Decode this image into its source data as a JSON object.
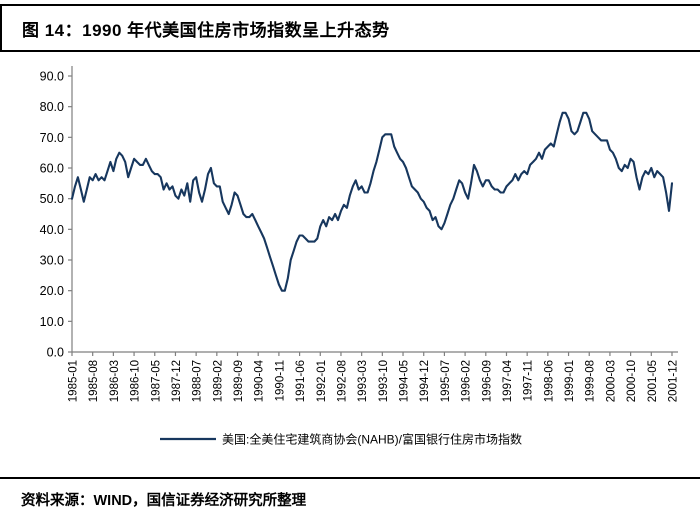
{
  "header": {
    "title": "图 14：1990 年代美国住房市场指数呈上升态势"
  },
  "footer": {
    "source": "资料来源：WIND，国信证券经济研究所整理"
  },
  "chart_data": {
    "type": "line",
    "title": "图 14：1990 年代美国住房市场指数呈上升态势",
    "xlabel": "",
    "ylabel": "",
    "ylim": [
      0,
      90
    ],
    "y_tick_step": 10,
    "y_tick_labels": [
      "90.0",
      "80.0",
      "70.0",
      "60.0",
      "50.0",
      "40.0",
      "30.0",
      "20.0",
      "10.0",
      "0.0"
    ],
    "x_tick_interval_months": 7,
    "x_tick_labels": [
      "1985-01",
      "1985-08",
      "1986-03",
      "1986-10",
      "1987-05",
      "1987-12",
      "1988-07",
      "1989-02",
      "1989-09",
      "1990-04",
      "1990-11",
      "1991-06",
      "1992-01",
      "1992-08",
      "1993-03",
      "1993-10",
      "1994-05",
      "1994-12",
      "1995-07",
      "1996-02",
      "1996-09",
      "1997-04",
      "1997-11",
      "1998-06",
      "1999-01",
      "1999-08",
      "2000-03",
      "2000-10",
      "2001-05",
      "2001-12"
    ],
    "grid": false,
    "legend_position": "bottom",
    "axis_color": "#7f7f7f",
    "series": [
      {
        "name": "美国:全美住宅建筑商协会(NAHB)/富国银行住房市场指数",
        "color": "#17375E",
        "start": "1985-01",
        "end": "2001-12",
        "frequency": "monthly",
        "values": [
          50,
          54,
          57,
          53,
          49,
          53,
          57,
          56,
          58,
          56,
          57,
          56,
          59,
          62,
          59,
          63,
          65,
          64,
          62,
          57,
          60,
          63,
          62,
          61,
          61,
          63,
          61,
          59,
          58,
          58,
          57,
          53,
          55,
          53,
          54,
          51,
          50,
          53,
          51,
          55,
          49,
          56,
          57,
          52,
          49,
          53,
          58,
          60,
          55,
          54,
          54,
          49,
          47,
          45,
          48,
          52,
          51,
          48,
          45,
          44,
          44,
          45,
          43,
          41,
          39,
          37,
          34,
          31,
          28,
          25,
          22,
          20,
          20,
          24,
          30,
          33,
          36,
          38,
          38,
          37,
          36,
          36,
          36,
          37,
          41,
          43,
          41,
          44,
          43,
          45,
          43,
          46,
          48,
          47,
          51,
          54,
          56,
          53,
          54,
          52,
          52,
          55,
          59,
          62,
          66,
          70,
          71,
          71,
          71,
          67,
          65,
          63,
          62,
          60,
          57,
          54,
          53,
          52,
          50,
          49,
          47,
          46,
          43,
          44,
          41,
          40,
          42,
          45,
          48,
          50,
          53,
          56,
          55,
          52,
          50,
          55,
          61,
          59,
          56,
          54,
          56,
          56,
          54,
          53,
          53,
          52,
          52,
          54,
          55,
          56,
          58,
          56,
          58,
          59,
          58,
          61,
          62,
          63,
          65,
          63,
          66,
          67,
          68,
          67,
          71,
          75,
          78,
          78,
          76,
          72,
          71,
          72,
          75,
          78,
          78,
          76,
          72,
          71,
          70,
          69,
          69,
          69,
          66,
          65,
          63,
          60,
          59,
          61,
          60,
          63,
          62,
          57,
          53,
          57,
          59,
          58,
          60,
          57,
          59,
          58,
          57,
          52,
          46,
          55
        ]
      }
    ]
  }
}
